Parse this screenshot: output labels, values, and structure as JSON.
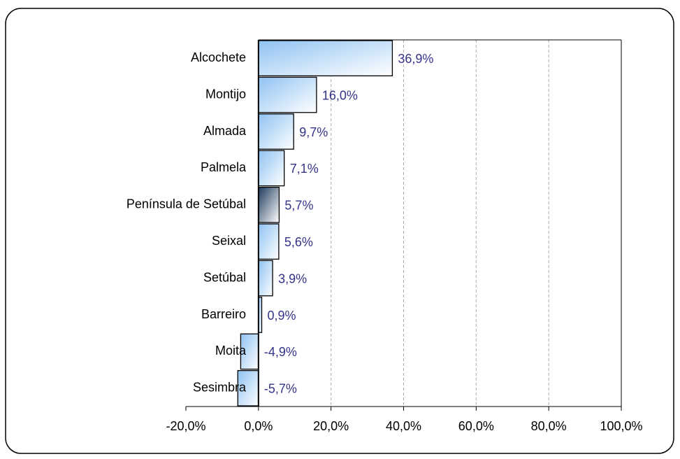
{
  "chart_data": {
    "type": "barh",
    "categories": [
      "Alcochete",
      "Montijo",
      "Almada",
      "Palmela",
      "Península de Setúbal",
      "Seixal",
      "Setúbal",
      "Barreiro",
      "Moita",
      "Sesimbra"
    ],
    "values": [
      36.9,
      16.0,
      9.7,
      7.1,
      5.7,
      5.6,
      3.9,
      0.9,
      -4.9,
      -5.7
    ],
    "value_labels": [
      "36,9%",
      "16,0%",
      "9,7%",
      "7,1%",
      "5,7%",
      "5,6%",
      "3,9%",
      "0,9%",
      "-4,9%",
      "-5,7%"
    ],
    "colors": [
      "#8fc2f2",
      "#8fc2f2",
      "#8fc2f2",
      "#8fc2f2",
      "#1e3a5c",
      "#8fc2f2",
      "#8fc2f2",
      "#8fc2f2",
      "#8fc2f2",
      "#8fc2f2"
    ],
    "xlim": [
      -20,
      100
    ],
    "xticks": [
      {
        "value": -20,
        "label": "-20,0%"
      },
      {
        "value": 0,
        "label": "0,0%"
      },
      {
        "value": 20,
        "label": "20,0%"
      },
      {
        "value": 40,
        "label": "40,0%"
      },
      {
        "value": 60,
        "label": "60,0%"
      },
      {
        "value": 80,
        "label": "80,0%"
      },
      {
        "value": 100,
        "label": "100,0%"
      }
    ],
    "grid": true
  }
}
